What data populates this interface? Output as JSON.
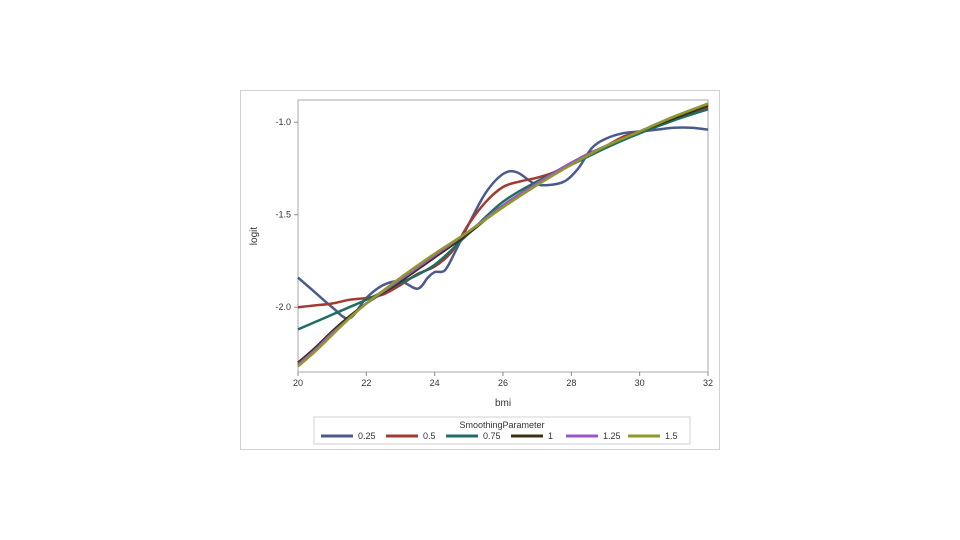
{
  "chart_data": {
    "type": "line",
    "xlabel": "bmi",
    "ylabel": "logit",
    "xlim": [
      20,
      32
    ],
    "ylim": [
      -2.35,
      -0.88
    ],
    "x_ticks": [
      20,
      22,
      24,
      26,
      28,
      30,
      32
    ],
    "x_tick_labels": [
      "20",
      "22",
      "24",
      "26",
      "28",
      "30",
      "32"
    ],
    "y_ticks": [
      -1.0,
      -1.5,
      -2.0
    ],
    "y_tick_labels": [
      "-1.0",
      "-1.5",
      "-2.0"
    ],
    "grid": false,
    "legend": {
      "title": "SmoothingParameter",
      "position": "bottom"
    },
    "series": [
      {
        "name": "0.25",
        "color": "#4a5a8c",
        "x": [
          20,
          20.5,
          21,
          21.5,
          22,
          22.5,
          23,
          23.5,
          23.8,
          24,
          24.3,
          24.6,
          25,
          25.5,
          26,
          26.4,
          26.9,
          27.3,
          27.8,
          28.2,
          28.6,
          29,
          29.5,
          30,
          30.5,
          31,
          31.5,
          32
        ],
        "y": [
          -1.84,
          -1.92,
          -2.0,
          -2.06,
          -1.95,
          -1.88,
          -1.86,
          -1.9,
          -1.84,
          -1.81,
          -1.8,
          -1.7,
          -1.55,
          -1.38,
          -1.28,
          -1.27,
          -1.33,
          -1.34,
          -1.32,
          -1.25,
          -1.14,
          -1.09,
          -1.06,
          -1.05,
          -1.04,
          -1.03,
          -1.03,
          -1.04
        ]
      },
      {
        "name": "0.5",
        "color": "#a33a32",
        "x": [
          20,
          20.5,
          21,
          21.5,
          22,
          22.5,
          23,
          23.5,
          24,
          24.5,
          25,
          25.5,
          26,
          26.5,
          27,
          27.5,
          28,
          28.5,
          29,
          29.5,
          30,
          30.5,
          31,
          31.5,
          32
        ],
        "y": [
          -2.0,
          -1.99,
          -1.98,
          -1.96,
          -1.95,
          -1.93,
          -1.88,
          -1.82,
          -1.78,
          -1.7,
          -1.55,
          -1.43,
          -1.35,
          -1.32,
          -1.3,
          -1.27,
          -1.22,
          -1.17,
          -1.13,
          -1.08,
          -1.05,
          -1.01,
          -0.98,
          -0.95,
          -0.92
        ]
      },
      {
        "name": "0.75",
        "color": "#1f6d63",
        "x": [
          20,
          20.5,
          21,
          21.5,
          22,
          23,
          24,
          25,
          26,
          27,
          28,
          29,
          30,
          31,
          32
        ],
        "y": [
          -2.12,
          -2.08,
          -2.04,
          -2.0,
          -1.96,
          -1.87,
          -1.77,
          -1.6,
          -1.43,
          -1.32,
          -1.23,
          -1.14,
          -1.06,
          -0.99,
          -0.93
        ]
      },
      {
        "name": "1",
        "color": "#3a2f12",
        "x": [
          20,
          20.5,
          21,
          21.5,
          22,
          23,
          24,
          25,
          26,
          27,
          28,
          29,
          30,
          31,
          32
        ],
        "y": [
          -2.3,
          -2.22,
          -2.13,
          -2.05,
          -1.98,
          -1.86,
          -1.73,
          -1.6,
          -1.45,
          -1.33,
          -1.22,
          -1.13,
          -1.05,
          -0.98,
          -0.91
        ]
      },
      {
        "name": "1.25",
        "color": "#9b57c8",
        "x": [
          20,
          20.5,
          21,
          21.5,
          22,
          23,
          24,
          25,
          26,
          27,
          28,
          29,
          30,
          31,
          32
        ],
        "y": [
          -2.31,
          -2.23,
          -2.14,
          -2.06,
          -1.98,
          -1.85,
          -1.72,
          -1.59,
          -1.45,
          -1.33,
          -1.22,
          -1.13,
          -1.05,
          -0.97,
          -0.9
        ]
      },
      {
        "name": "1.5",
        "color": "#8e9a2a",
        "x": [
          20,
          20.5,
          21,
          21.5,
          22,
          23,
          24,
          25,
          26,
          27,
          28,
          29,
          30,
          31,
          32
        ],
        "y": [
          -2.32,
          -2.24,
          -2.15,
          -2.06,
          -1.98,
          -1.84,
          -1.71,
          -1.59,
          -1.46,
          -1.34,
          -1.23,
          -1.13,
          -1.05,
          -0.97,
          -0.9
        ]
      }
    ]
  }
}
